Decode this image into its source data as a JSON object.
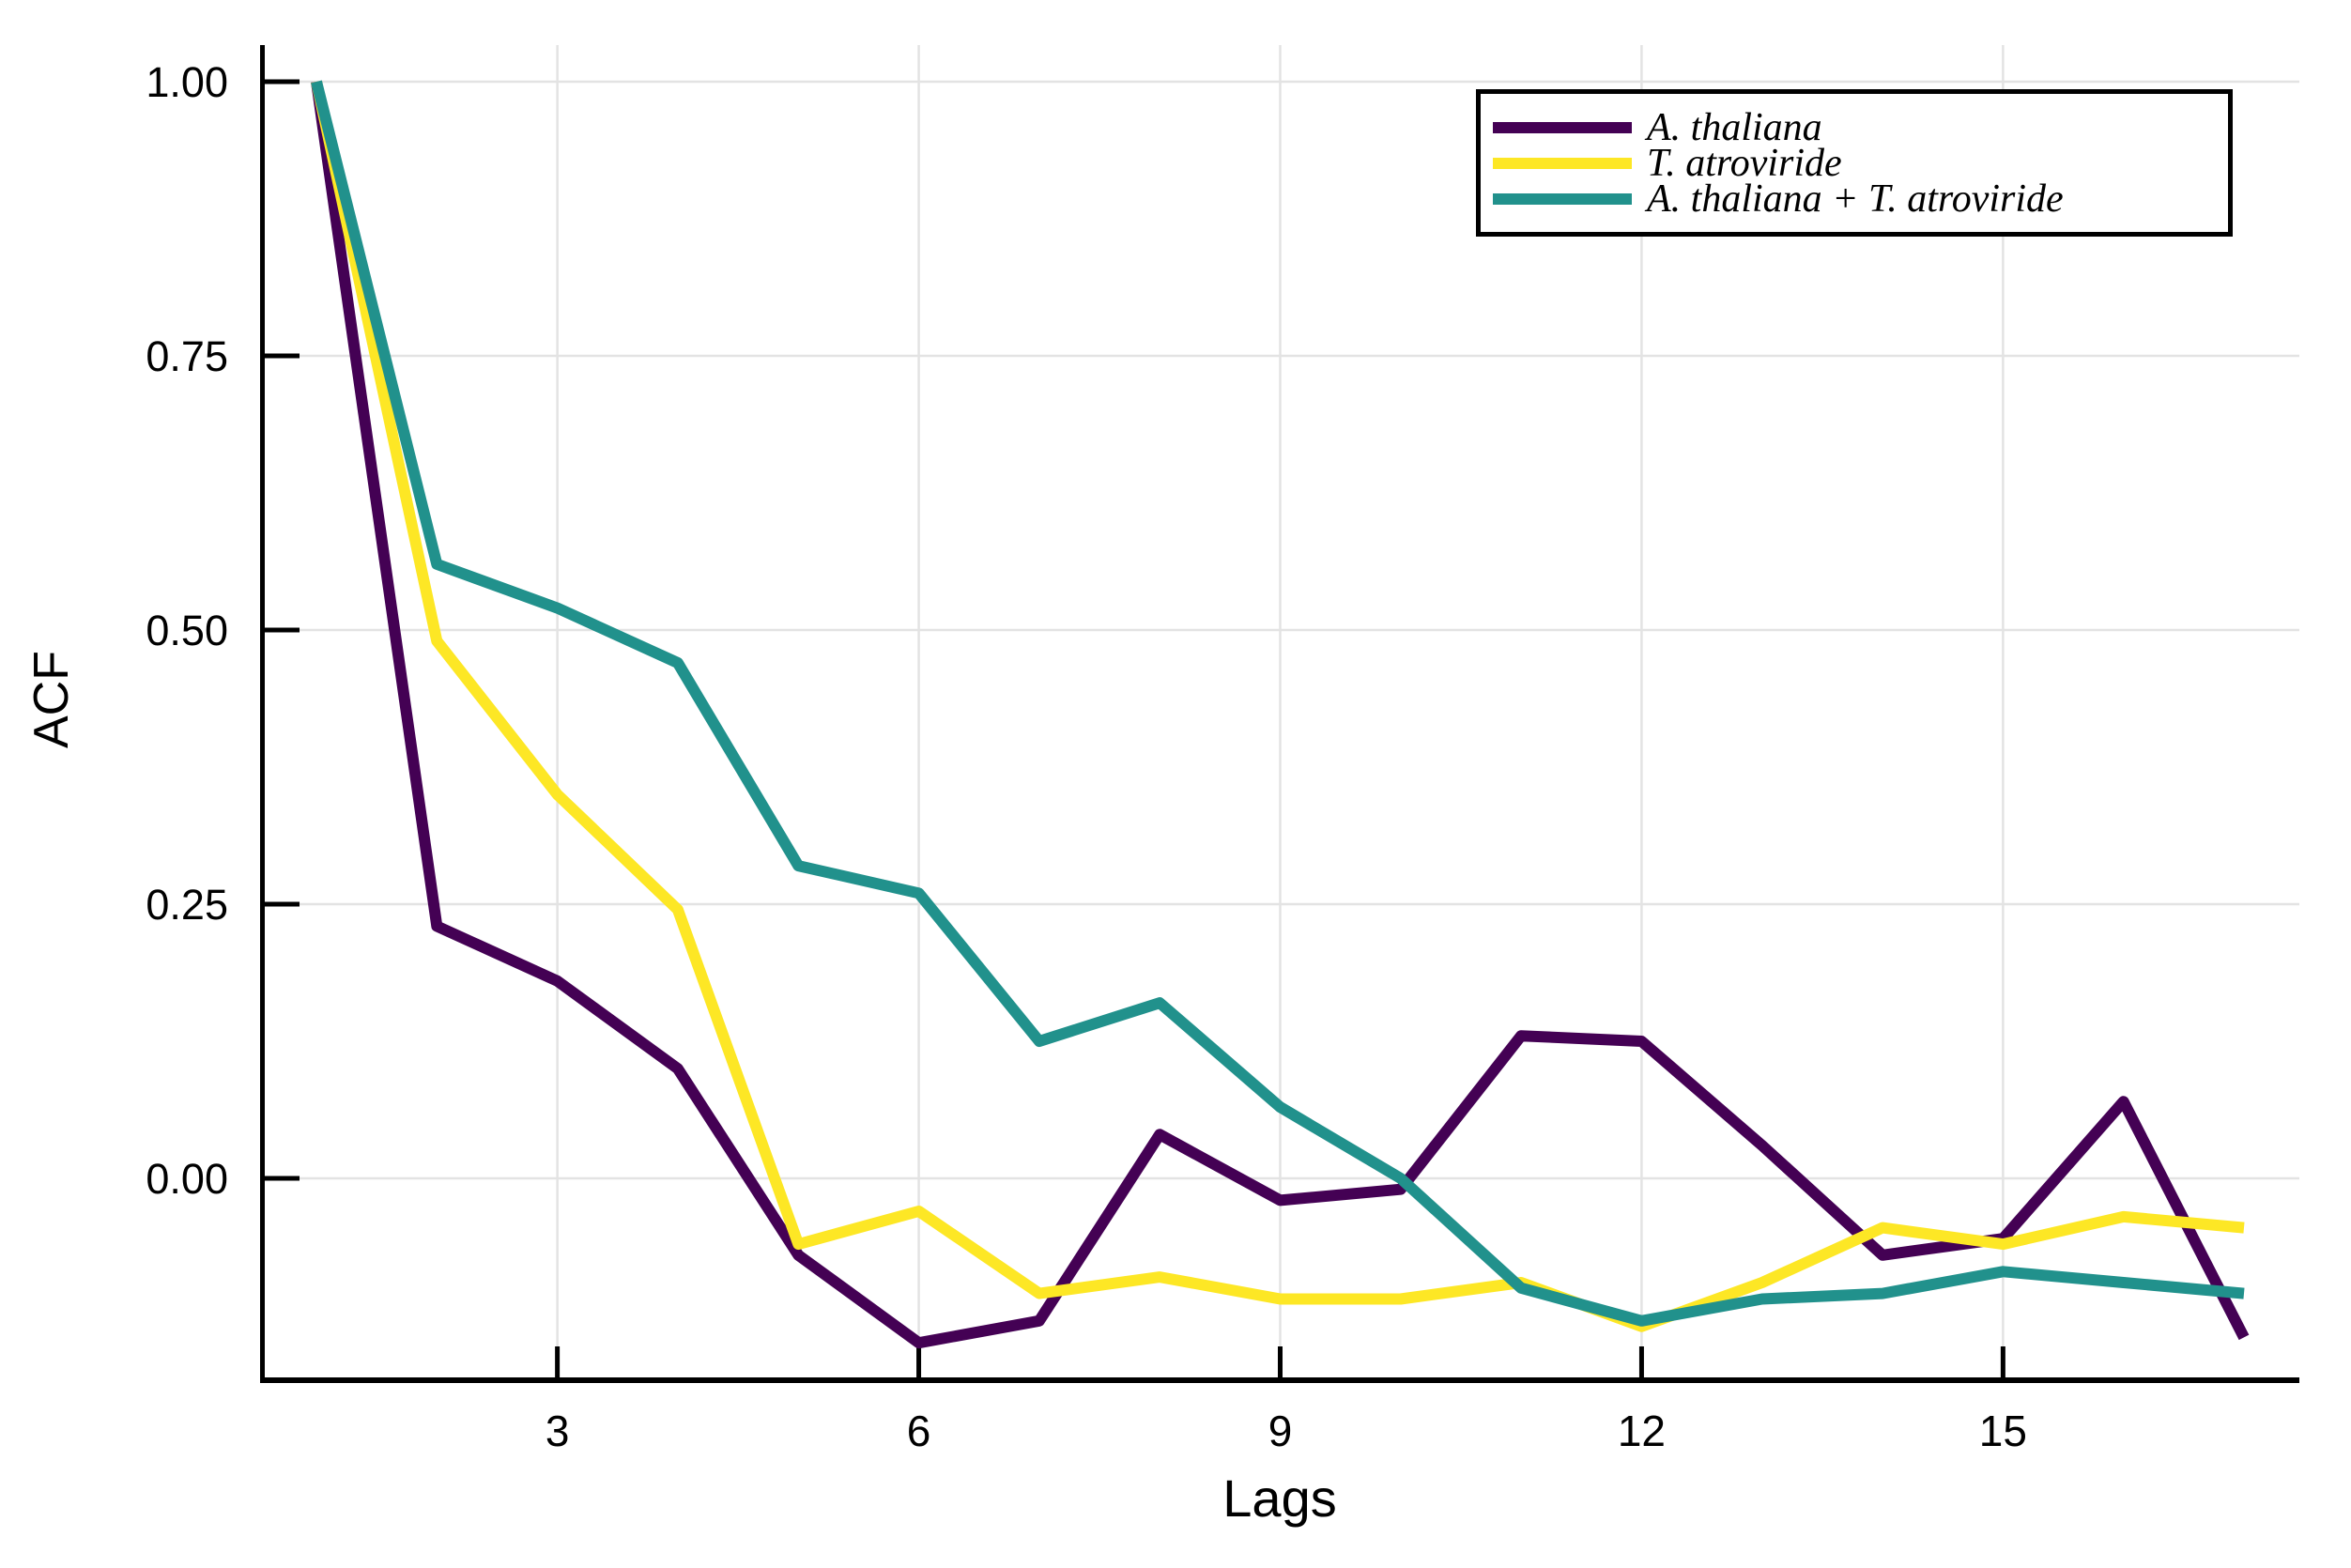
{
  "figure": {
    "background": "#ffffff",
    "gridline_color": "#e3e3e3",
    "axis_color": "#000000"
  },
  "chart_data": {
    "type": "line",
    "title": "",
    "xlabel": "Lags",
    "ylabel": "ACF",
    "x": [
      1,
      2,
      3,
      4,
      5,
      6,
      7,
      8,
      9,
      10,
      11,
      12,
      13,
      14,
      15,
      16,
      17
    ],
    "xlim": [
      0.5,
      17.5
    ],
    "ylim": [
      -0.18,
      1.02
    ],
    "grid": true,
    "xticks": {
      "values": [
        3,
        6,
        9,
        12,
        15
      ],
      "labels": [
        "3",
        "6",
        "9",
        "12",
        "15"
      ]
    },
    "yticks": {
      "values": [
        0.0,
        0.25,
        0.5,
        0.75,
        1.0
      ],
      "labels": [
        "0.00",
        "0.25",
        "0.50",
        "0.75",
        "1.00"
      ]
    },
    "legend": {
      "position": "top-right",
      "border_color": "#000000",
      "background": "#ffffff"
    },
    "series": [
      {
        "name": "A. thaliana",
        "color": "#440154",
        "values": [
          1.0,
          0.23,
          0.18,
          0.1,
          -0.07,
          -0.15,
          -0.13,
          0.04,
          -0.02,
          -0.01,
          0.13,
          0.125,
          0.03,
          -0.07,
          -0.055,
          0.07,
          -0.145
        ]
      },
      {
        "name": "T. atroviride",
        "color": "#FDE725",
        "values": [
          1.0,
          0.49,
          0.35,
          0.245,
          -0.06,
          -0.03,
          -0.105,
          -0.09,
          -0.11,
          -0.11,
          -0.095,
          -0.135,
          -0.095,
          -0.045,
          -0.06,
          -0.035,
          -0.045
        ]
      },
      {
        "name": "A. thaliana + T. atroviride",
        "color": "#21918C",
        "values": [
          1.0,
          0.56,
          0.52,
          0.47,
          0.285,
          0.26,
          0.125,
          0.16,
          0.065,
          0.0,
          -0.1,
          -0.13,
          -0.11,
          -0.105,
          -0.085,
          -0.095,
          -0.105
        ]
      }
    ]
  }
}
